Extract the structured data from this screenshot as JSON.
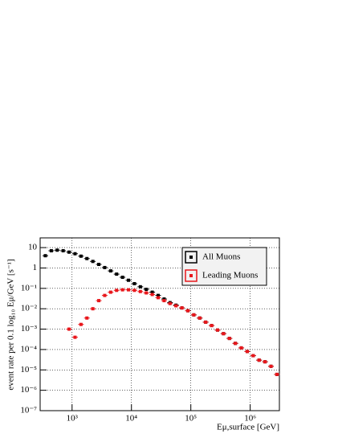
{
  "chart_data": {
    "type": "scatter",
    "xlabel": "Eμ,surface [GeV]",
    "ylabel": "event rate per 0.1 log₁₀ Eμ/GeV [s⁻¹]",
    "xlog": true,
    "ylog": true,
    "grid": true,
    "legend": "top-right",
    "xlim": [
      290,
      3100000
    ],
    "ylim": [
      1e-07,
      30
    ],
    "xticks": [
      {
        "value": 1000,
        "label": "10³"
      },
      {
        "value": 10000,
        "label": "10⁴"
      },
      {
        "value": 100000,
        "label": "10⁵"
      },
      {
        "value": 1000000,
        "label": "10⁶"
      }
    ],
    "yticks": [
      {
        "value": 1e-07,
        "label": "10⁻⁷"
      },
      {
        "value": 1e-06,
        "label": "10⁻⁶"
      },
      {
        "value": 1e-05,
        "label": "10⁻⁵"
      },
      {
        "value": 0.0001,
        "label": "10⁻⁴"
      },
      {
        "value": 0.001,
        "label": "10⁻³"
      },
      {
        "value": 0.01,
        "label": "10⁻²"
      },
      {
        "value": 0.1,
        "label": "10⁻¹"
      },
      1,
      10
    ],
    "x": [
      355,
      447,
      562,
      708,
      891,
      1122,
      1413,
      1778,
      2239,
      2818,
      3548,
      4467,
      5623,
      7079,
      8913,
      11220,
      14125,
      17783,
      22387,
      28184,
      35481,
      44668,
      56234,
      70795,
      89125,
      112202,
      141254,
      177828,
      223872,
      281838,
      354813,
      446684,
      562341,
      707946,
      891251,
      1122018,
      1412538,
      1778279,
      2238721,
      2818383
    ],
    "series": [
      {
        "name": "All Muons",
        "color": "#000000",
        "values": [
          4,
          7,
          7.5,
          7,
          6,
          5,
          3.8,
          2.9,
          2.1,
          1.5,
          1.05,
          0.72,
          0.5,
          0.35,
          0.25,
          0.17,
          0.12,
          0.09,
          0.065,
          0.045,
          0.03,
          0.02,
          0.015,
          0.011,
          0.008,
          0.005,
          0.0035,
          0.0022,
          0.0015,
          0.0009,
          0.0006,
          0.00035,
          0.0002,
          0.00012,
          8e-05,
          5e-05,
          3e-05,
          2.5e-05,
          1.5e-05,
          6e-06
        ]
      },
      {
        "name": "Leading Muons",
        "color": "#e8161b",
        "values": [
          null,
          null,
          null,
          null,
          0.001,
          0.0004,
          0.0017,
          0.0035,
          0.01,
          0.025,
          0.045,
          0.065,
          0.08,
          0.085,
          0.085,
          0.08,
          0.07,
          0.06,
          0.05,
          0.035,
          0.025,
          0.018,
          0.014,
          0.011,
          0.008,
          0.005,
          0.0035,
          0.0022,
          0.0015,
          0.0009,
          0.0006,
          0.00035,
          0.0002,
          0.00012,
          8e-05,
          5e-05,
          3e-05,
          2.5e-05,
          1.5e-05,
          6e-06
        ]
      }
    ]
  }
}
